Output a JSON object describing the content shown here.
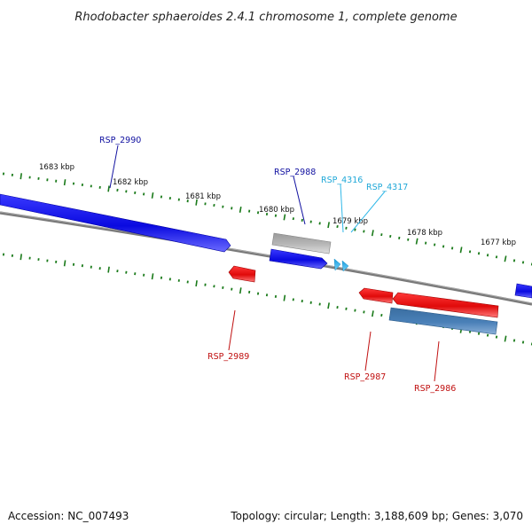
{
  "title": "Rhodobacter sphaeroides 2.4.1 chromosome 1, complete genome",
  "footer": {
    "accession": "Accession: NC_007493",
    "summary": "Topology: circular; Length: 3,188,609 bp; Genes: 3,070"
  },
  "scale_labels": [
    "1683 kbp",
    "1682 kbp",
    "1681 kbp",
    "1680 kbp",
    "1679 kbp",
    "1678 kbp",
    "1677 kbp"
  ],
  "genes": {
    "rsp_2990": "RSP_2990",
    "rsp_2988": "RSP_2988",
    "rsp_4316": "RSP_4316",
    "rsp_4317": "RSP_4317",
    "rsp_2989": "RSP_2989",
    "rsp_2987": "RSP_2987",
    "rsp_2986": "RSP_2986"
  },
  "colors": {
    "forward_gene": "#1010e0",
    "reverse_gene": "#e01010",
    "pseudo_gene": "#a8a8a8",
    "rna_gene": "#30b8e8",
    "reverse_other": "#4a7fb0",
    "backbone": "#7a7a7a",
    "ticks": "#1a7a1a",
    "forward_label": "#1010a0",
    "rna_label": "#20a8d8",
    "reverse_label": "#c01010"
  }
}
